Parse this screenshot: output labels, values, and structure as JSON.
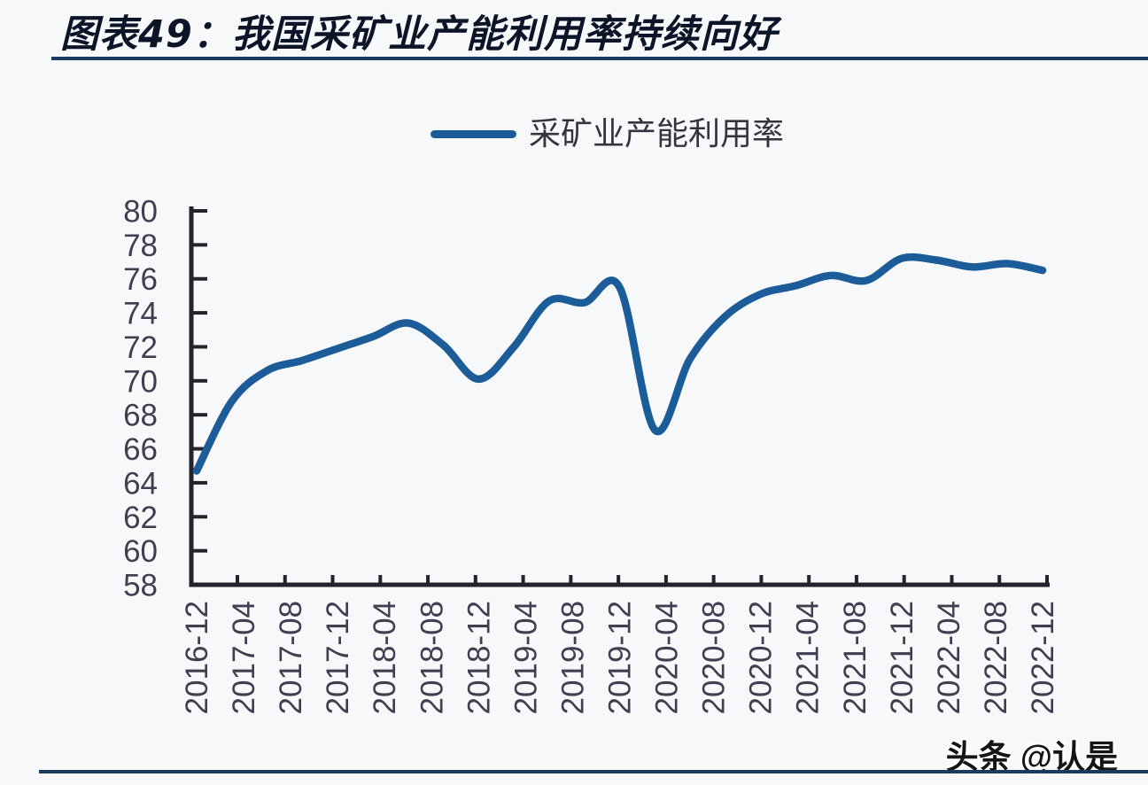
{
  "header": {
    "title": "图表49：我国采矿业产能利用率持续向好"
  },
  "legend": {
    "label": "采矿业产能利用率"
  },
  "watermark": {
    "text": "头条 @认是"
  },
  "colors": {
    "line": "#1b5c99",
    "axis": "#23232e",
    "tick_label": "#3f3f52",
    "title": "#0c1428",
    "rule": "#1c3a60",
    "page_bg": "#f7f8fa"
  },
  "chart_data": {
    "type": "line",
    "title": "图表49：我国采矿业产能利用率持续向好",
    "xlabel": "",
    "ylabel": "",
    "ylim": [
      58,
      80
    ],
    "y_ticks": [
      58,
      60,
      62,
      64,
      66,
      68,
      70,
      72,
      74,
      76,
      78,
      80
    ],
    "grid": false,
    "legend_position": "top-center",
    "x_tick_labels": [
      "2016-12",
      "2017-04",
      "2017-08",
      "2017-12",
      "2018-04",
      "2018-08",
      "2018-12",
      "2019-04",
      "2019-08",
      "2019-12",
      "2020-04",
      "2020-08",
      "2020-12",
      "2021-04",
      "2021-08",
      "2021-12",
      "2022-04",
      "2022-08",
      "2022-12"
    ],
    "series": [
      {
        "name": "采矿业产能利用率",
        "x": [
          "2016-12",
          "2017-03",
          "2017-06",
          "2017-09",
          "2017-12",
          "2018-03",
          "2018-06",
          "2018-09",
          "2018-12",
          "2019-03",
          "2019-06",
          "2019-09",
          "2019-12",
          "2020-03",
          "2020-06",
          "2020-09",
          "2020-12",
          "2021-03",
          "2021-06",
          "2021-09",
          "2021-12",
          "2022-03",
          "2022-06",
          "2022-09",
          "2022-12"
        ],
        "values": [
          64.7,
          68.8,
          70.6,
          71.2,
          71.9,
          72.6,
          73.4,
          72.1,
          70.1,
          72.0,
          74.7,
          74.6,
          75.5,
          67.1,
          71.3,
          73.8,
          75.1,
          75.6,
          76.2,
          75.9,
          77.2,
          77.1,
          76.7,
          76.9,
          76.5
        ]
      }
    ]
  }
}
